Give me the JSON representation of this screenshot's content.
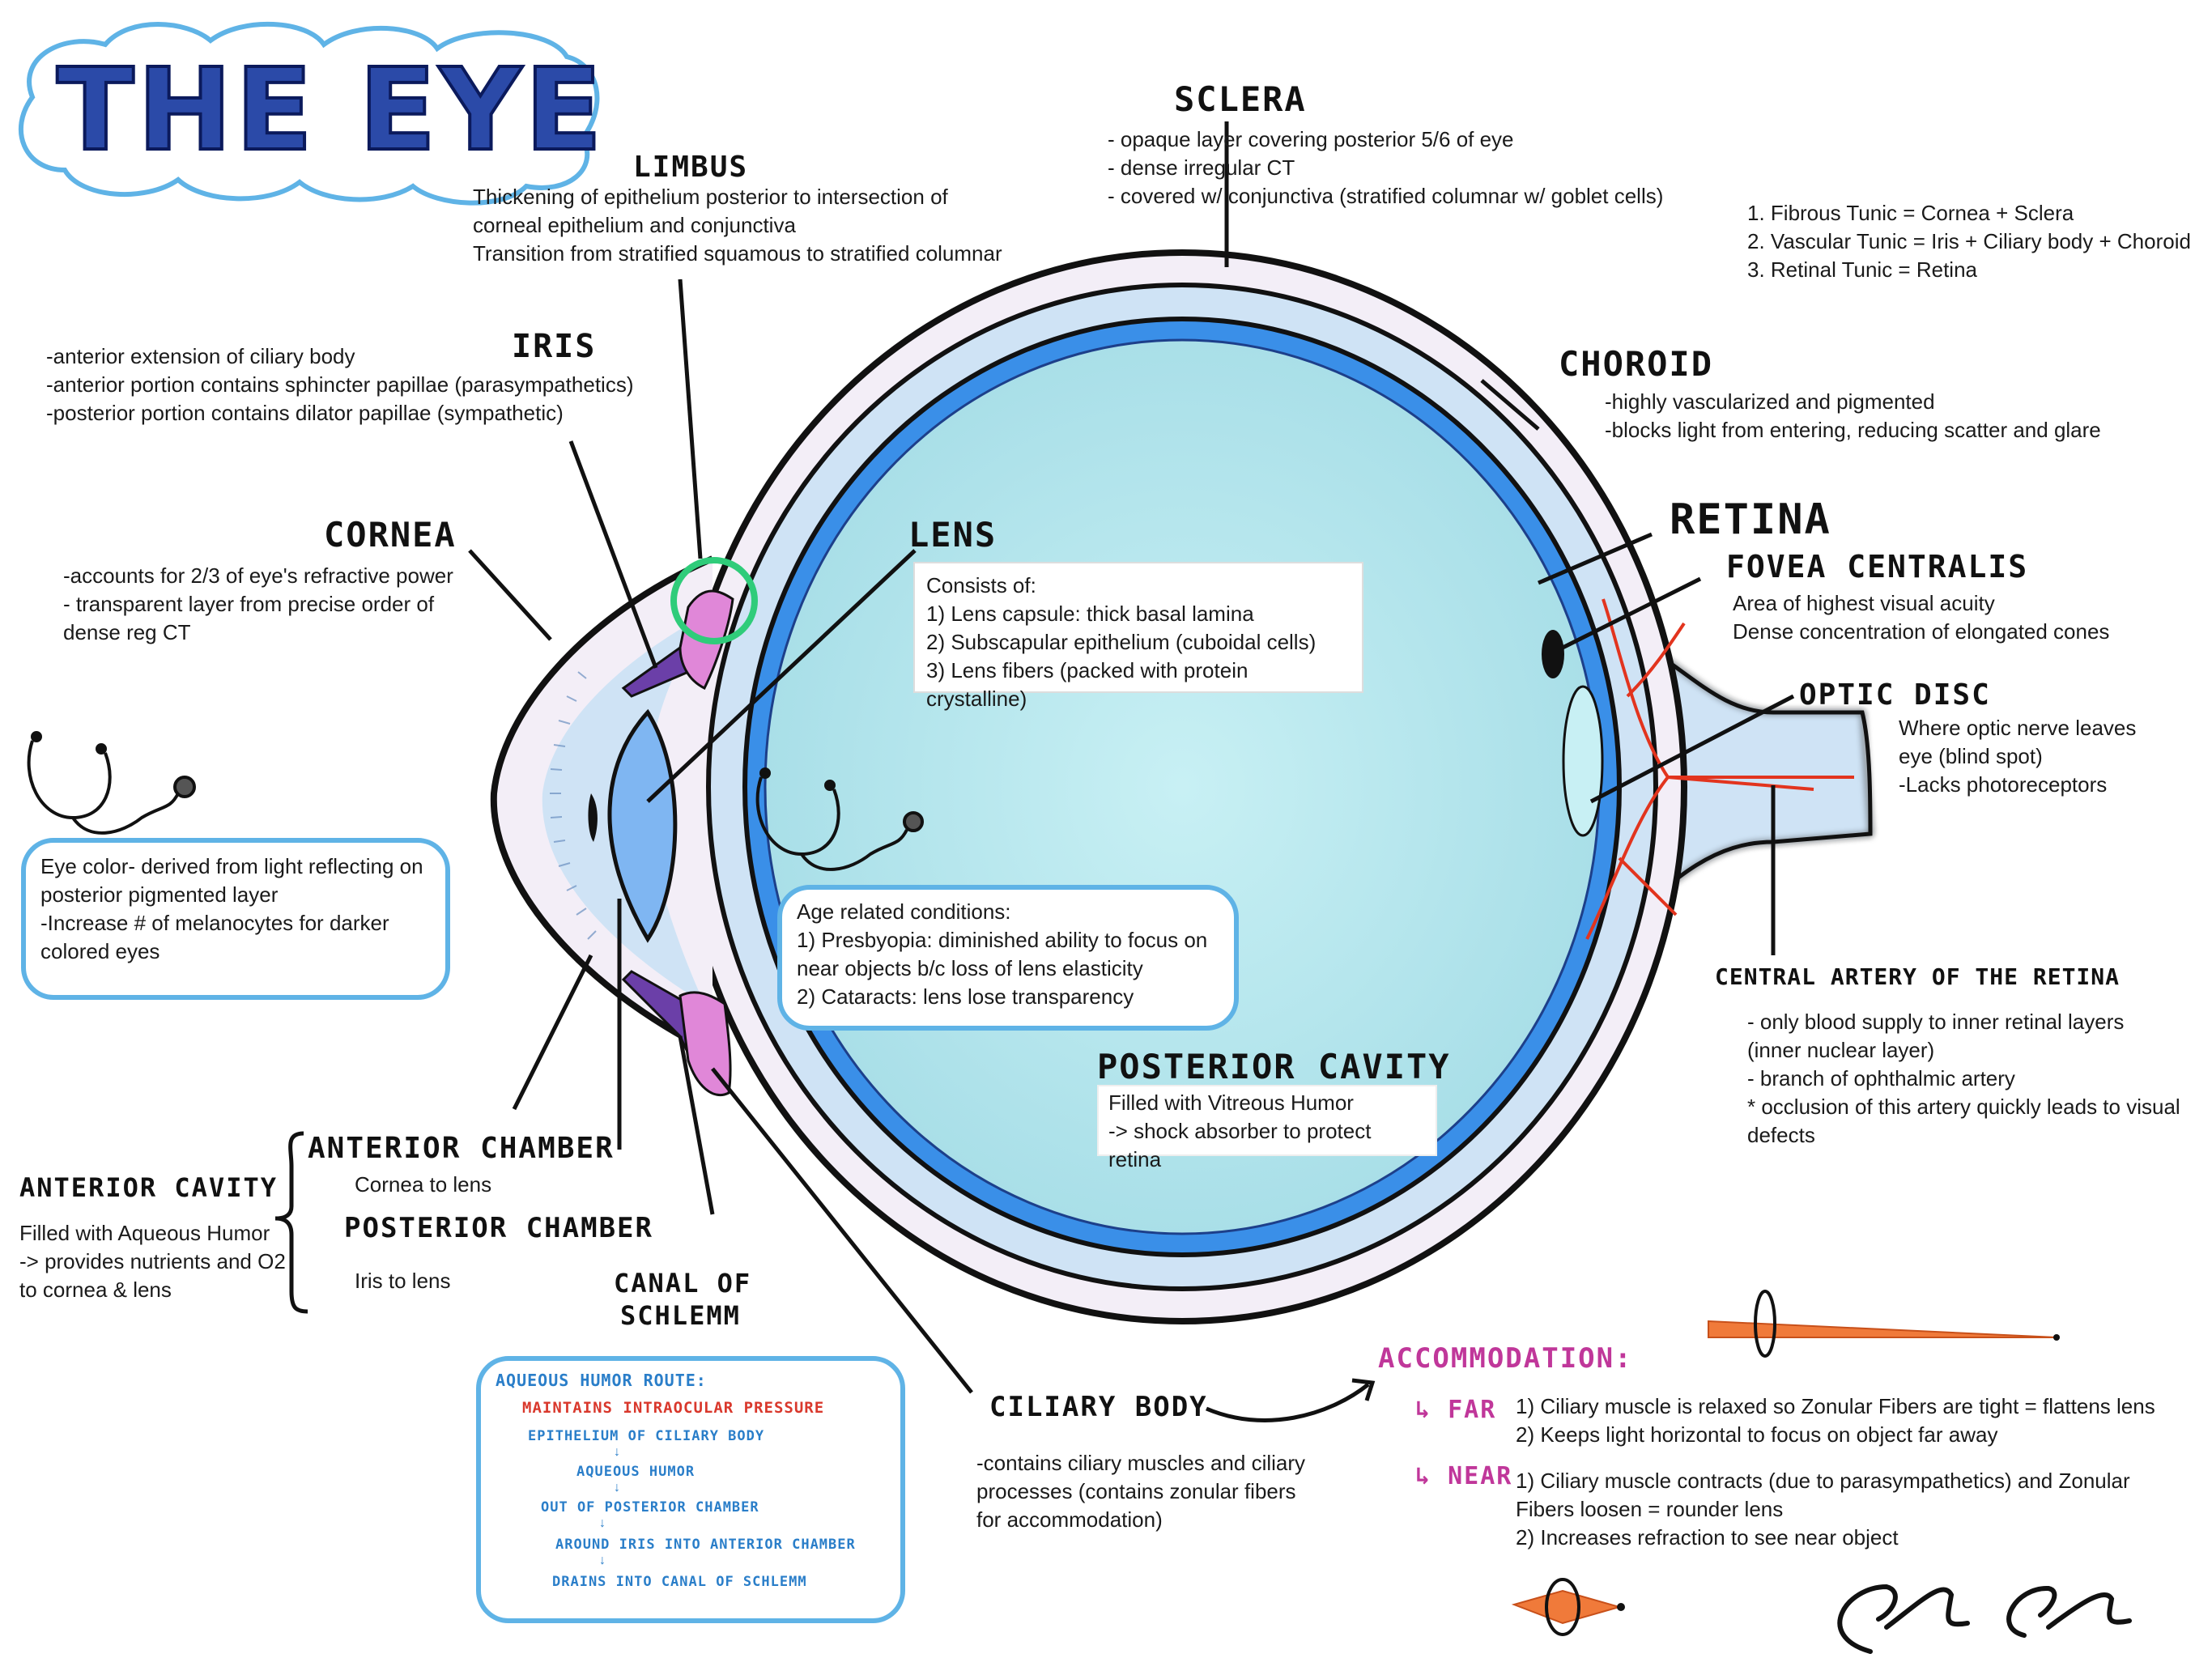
{
  "title": "THE EYE",
  "colors": {
    "title_fill": "#2b4aa8",
    "title_cloud": "#5fb3e6",
    "accommodation": "#c0379a",
    "route_red": "#d9382c",
    "route_blue": "#2a7ec9",
    "highlight_green": "#2fcc7a"
  },
  "labels": {
    "sclera": {
      "heading": "SCLERA",
      "lines": [
        "- opaque layer covering posterior 5/6 of eye",
        "- dense irregular CT",
        "- covered w/ conjunctiva (stratified columnar w/ goblet cells)"
      ]
    },
    "tunics": [
      "1. Fibrous Tunic = Cornea + Sclera",
      "2. Vascular Tunic =  Iris + Ciliary body + Choroid",
      "3. Retinal Tunic = Retina"
    ],
    "limbus": {
      "heading": "LIMBUS",
      "lines": [
        "Thickening of epithelium posterior to intersection of",
        "corneal epithelium and conjunctiva",
        "Transition from stratified squamous to stratified columnar"
      ]
    },
    "iris": {
      "heading": "IRIS",
      "lines": [
        "-anterior extension of ciliary body",
        "-anterior portion contains sphincter papillae (parasympathetics)",
        "-posterior portion contains dilator papillae (sympathetic)"
      ]
    },
    "choroid": {
      "heading": "CHOROID",
      "lines": [
        "-highly vascularized and pigmented",
        "-blocks light from entering, reducing scatter and glare"
      ]
    },
    "cornea": {
      "heading": "CORNEA",
      "lines": [
        "-accounts for 2/3 of eye's refractive power",
        "- transparent layer from precise order of",
        "dense reg CT"
      ]
    },
    "lens": {
      "heading": "LENS",
      "lines": [
        "Consists of:",
        "1) Lens capsule: thick basal lamina",
        "2) Subscapular epithelium (cuboidal cells)",
        "3) Lens fibers (packed with protein crystalline)"
      ]
    },
    "retina": {
      "heading": "RETINA"
    },
    "fovea": {
      "heading": "FOVEA CENTRALIS",
      "lines": [
        "Area of highest visual acuity",
        "Dense concentration of elongated cones"
      ]
    },
    "optic_disc": {
      "heading": "OPTIC DISC",
      "lines": [
        "Where optic nerve leaves",
        "eye (blind spot)",
        "-Lacks photoreceptors"
      ]
    },
    "eye_color": [
      "Eye color- derived from light reflecting on",
      "posterior pigmented layer",
      "-Increase # of melanocytes for darker",
      "colored eyes"
    ],
    "age_conditions": [
      "Age related conditions:",
      "1) Presbyopia: diminished ability to focus on",
      "near objects b/c loss of lens elasticity",
      "2) Cataracts: lens lose transparency"
    ],
    "central_artery": {
      "heading": "CENTRAL ARTERY OF THE RETINA",
      "lines": [
        "- only blood supply to inner retinal layers",
        "(inner nuclear layer)",
        "- branch of ophthalmic artery",
        "* occlusion of this artery quickly leads to visual",
        "defects"
      ]
    },
    "posterior_cavity": {
      "heading": "POSTERIOR CAVITY",
      "lines": [
        "Filled with Vitreous Humor",
        "-> shock absorber to protect retina"
      ]
    },
    "anterior_cavity": {
      "heading": "ANTERIOR CAVITY",
      "lines": [
        "Filled with Aqueous Humor",
        "-> provides nutrients and O2",
        "to cornea & lens"
      ]
    },
    "anterior_chamber": {
      "heading": "ANTERIOR CHAMBER",
      "text": "Cornea to lens"
    },
    "posterior_chamber": {
      "heading": "POSTERIOR CHAMBER",
      "text": "Iris to lens"
    },
    "canal": {
      "heading_1": "CANAL OF",
      "heading_2": "SCHLEMM"
    },
    "ciliary_body": {
      "heading": "CILIARY BODY",
      "lines": [
        "-contains ciliary muscles and ciliary",
        "processes (contains zonular fibers",
        "for accommodation)"
      ]
    },
    "aqueous_route": {
      "title": "AQUEOUS HUMOR ROUTE:",
      "steps": [
        "MAINTAINS INTRAOCULAR PRESSURE",
        "EPITHELIUM OF CILIARY BODY",
        "AQUEOUS HUMOR",
        "OUT OF POSTERIOR CHAMBER",
        "AROUND IRIS INTO ANTERIOR CHAMBER",
        "DRAINS INTO CANAL OF SCHLEMM"
      ]
    },
    "accommodation": {
      "heading": "ACCOMMODATION:",
      "far_label": "↳ FAR",
      "far_lines": [
        "1) Ciliary muscle is relaxed so Zonular Fibers are tight = flattens lens",
        "2) Keeps light horizontal to focus on object far away"
      ],
      "near_label": "↳ NEAR",
      "near_lines": [
        "1) Ciliary muscle contracts (due to parasympathetics) and Zonular",
        "Fibers loosen = rounder lens",
        "2) Increases refraction to see near object"
      ]
    }
  }
}
